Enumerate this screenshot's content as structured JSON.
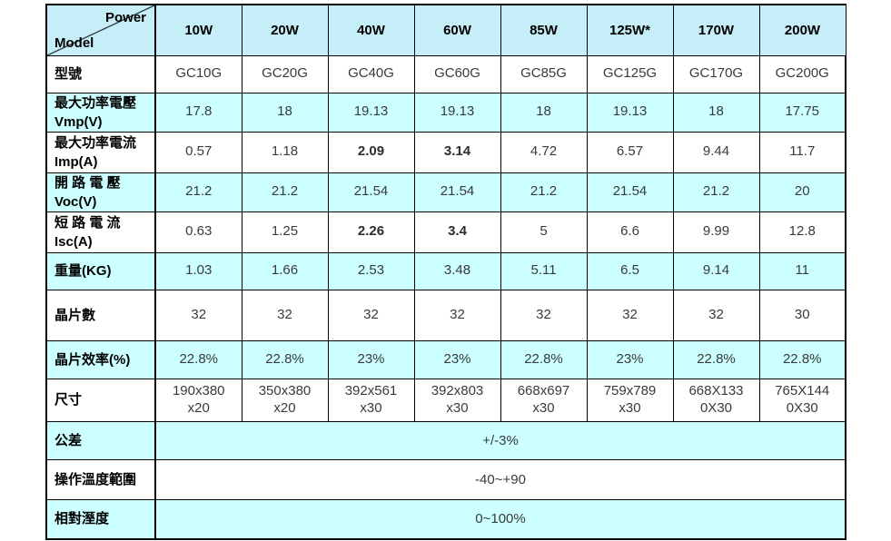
{
  "colors": {
    "header_bg": "#c6eef9",
    "row_cyan_bg": "#ccffff",
    "row_white_bg": "#ffffff",
    "border": "#000000",
    "label_text": "#000000",
    "value_text": "#3a3a3a"
  },
  "table": {
    "corner": {
      "top_right": "Power",
      "bottom_left": "Model"
    },
    "columns": [
      "10W",
      "20W",
      "40W",
      "60W",
      "85W",
      "125W*",
      "170W",
      "200W"
    ],
    "rows": [
      {
        "label": "型號",
        "values": [
          "GC10G",
          "GC20G",
          "GC40G",
          "GC60G",
          "GC85G",
          "GC125G",
          "GC170G",
          "GC200G"
        ]
      },
      {
        "label": "最大功率電壓\nVmp(V)",
        "values": [
          "17.8",
          "18",
          "19.13",
          "19.13",
          "18",
          "19.13",
          "18",
          "17.75"
        ]
      },
      {
        "label": "最大功率電流\nImp(A)",
        "values": [
          "0.57",
          "1.18",
          "2.09",
          "3.14",
          "4.72",
          "6.57",
          "9.44",
          "11.7"
        ]
      },
      {
        "label": "開 路 電 壓\nVoc(V)",
        "values": [
          "21.2",
          "21.2",
          "21.54",
          "21.54",
          "21.2",
          "21.54",
          "21.2",
          "20"
        ]
      },
      {
        "label": "短 路 電 流\nIsc(A)",
        "values": [
          "0.63",
          "1.25",
          "2.26",
          "3.4",
          "5",
          "6.6",
          "9.99",
          "12.8"
        ]
      },
      {
        "label": "重量(KG)",
        "values": [
          "1.03",
          "1.66",
          "2.53",
          "3.48",
          "5.11",
          "6.5",
          "9.14",
          "11"
        ]
      },
      {
        "label": "晶片數",
        "values": [
          "32",
          "32",
          "32",
          "32",
          "32",
          "32",
          "32",
          "30"
        ]
      },
      {
        "label": "晶片效率(%)",
        "values": [
          "22.8%",
          "22.8%",
          "23%",
          "23%",
          "22.8%",
          "23%",
          "22.8%",
          "22.8%"
        ]
      },
      {
        "label": "尺寸",
        "values": [
          "190x380\nx20",
          "350x380\nx20",
          "392x561\nx30",
          "392x803\nx30",
          "668x697\nx30",
          "759x789\nx30",
          "668X133\n0X30",
          "765X144\n0X30"
        ]
      },
      {
        "label": "公差",
        "merged": "+/-3%"
      },
      {
        "label": "操作溫度範圍",
        "merged": "-40~+90"
      },
      {
        "label": "相對溼度",
        "merged": "0~100%"
      }
    ]
  }
}
